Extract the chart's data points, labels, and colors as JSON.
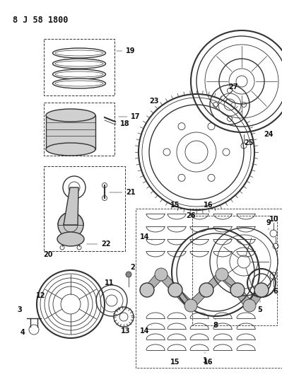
{
  "title": "8 J 58 1800",
  "bg_color": "#ffffff",
  "line_color": "#333333",
  "title_fontsize": 8.5,
  "label_fontsize": 7,
  "label_fontsize_bold": 7
}
